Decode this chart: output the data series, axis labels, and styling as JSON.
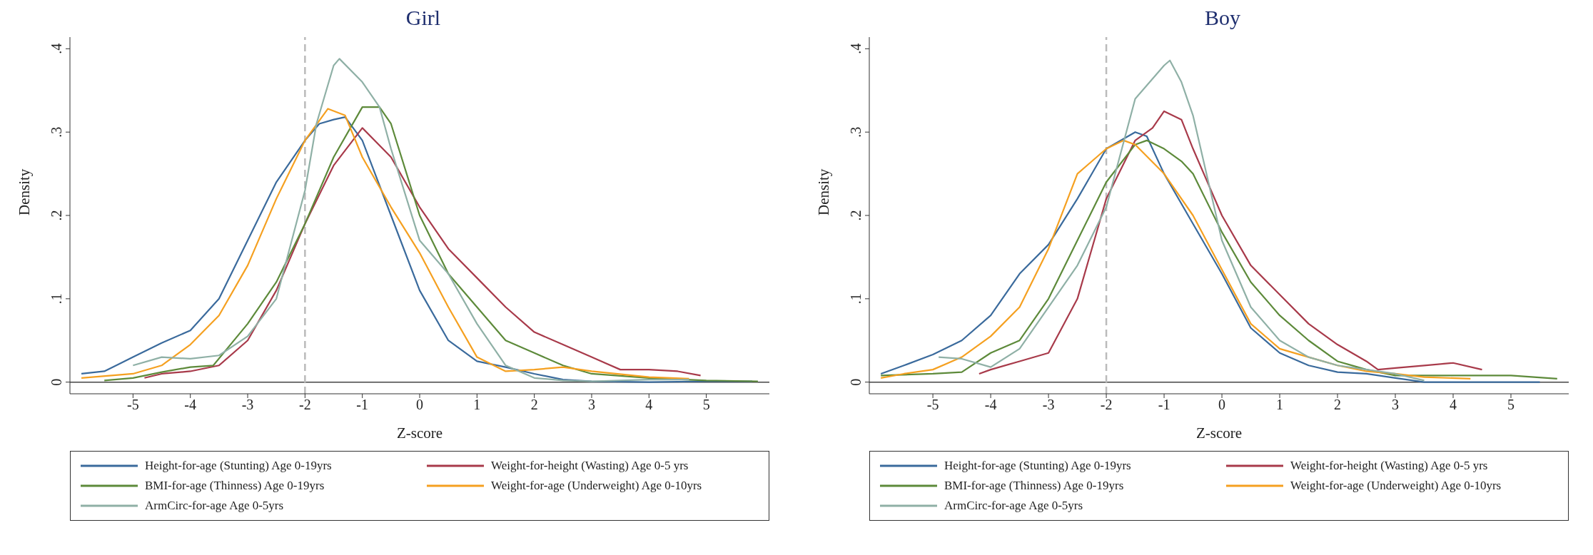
{
  "chart_data": [
    {
      "type": "line",
      "title": "Girl",
      "xlabel": "Z-score",
      "ylabel": "Density",
      "xlim": [
        -6.1,
        6.1
      ],
      "ylim": [
        -0.014,
        0.414
      ],
      "xticks": [
        -5,
        -4,
        -3,
        -2,
        -1,
        0,
        1,
        2,
        3,
        4,
        5
      ],
      "yticks": [
        0,
        {
          "value": 0.1,
          "label": ".1"
        },
        {
          "value": 0.2,
          "label": ".2"
        },
        {
          "value": 0.3,
          "label": ".3"
        },
        {
          "value": 0.4,
          "label": ".4"
        }
      ],
      "grid": false,
      "legend": "bottom",
      "marker": "none",
      "line_style": "solid",
      "ref_lines": [
        {
          "axis": "y",
          "value": 0,
          "label": null,
          "color": "#444444",
          "line_style": "solid"
        },
        {
          "axis": "x",
          "value": -2,
          "label": null,
          "color": "#bbbbbb",
          "line_style": "dashed"
        }
      ],
      "series": [
        {
          "name": "Height-for-age (Stunting) Age 0-19yrs",
          "color": "#3a6a9c",
          "x": [
            -5.9,
            -5.5,
            -5,
            -4.5,
            -4,
            -3.5,
            -3,
            -2.5,
            -2,
            -1.75,
            -1.5,
            -1.3,
            -1,
            -0.5,
            0,
            0.5,
            1,
            1.5,
            2,
            2.5,
            3,
            4,
            5,
            5.8
          ],
          "values": [
            0.01,
            0.013,
            0.03,
            0.047,
            0.062,
            0.1,
            0.17,
            0.24,
            0.29,
            0.31,
            0.315,
            0.318,
            0.29,
            0.2,
            0.11,
            0.05,
            0.025,
            0.018,
            0.01,
            0.003,
            0.001,
            0,
            0.001,
            0.001
          ]
        },
        {
          "name": "Weight-for-height (Wasting) Age 0-5 yrs",
          "color": "#a83a4a",
          "x": [
            -4.8,
            -4.5,
            -4,
            -3.5,
            -3,
            -2.5,
            -2,
            -1.5,
            -1,
            -0.5,
            0,
            0.5,
            1,
            1.5,
            2,
            2.5,
            3,
            3.5,
            4,
            4.5,
            4.9
          ],
          "values": [
            0.005,
            0.01,
            0.013,
            0.02,
            0.05,
            0.11,
            0.19,
            0.26,
            0.305,
            0.27,
            0.21,
            0.16,
            0.125,
            0.09,
            0.06,
            0.045,
            0.03,
            0.015,
            0.015,
            0.013,
            0.008
          ]
        },
        {
          "name": "BMI-for-age (Thinness) Age 0-19yrs",
          "color": "#5d8a3a",
          "x": [
            -5.5,
            -5,
            -4.5,
            -4,
            -3.6,
            -3,
            -2.5,
            -2,
            -1.5,
            -1,
            -0.7,
            -0.5,
            0,
            0.5,
            1,
            1.5,
            2,
            2.5,
            3,
            4,
            5,
            5.9
          ],
          "values": [
            0.002,
            0.005,
            0.012,
            0.018,
            0.02,
            0.07,
            0.12,
            0.19,
            0.27,
            0.33,
            0.33,
            0.31,
            0.2,
            0.13,
            0.09,
            0.05,
            0.035,
            0.02,
            0.01,
            0.005,
            0.002,
            0.001
          ]
        },
        {
          "name": "Weight-for-age (Underweight) Age 0-10yrs",
          "color": "#f5a020",
          "x": [
            -5.9,
            -5,
            -4.5,
            -4,
            -3.5,
            -3,
            -2.5,
            -2,
            -1.6,
            -1.3,
            -1,
            -0.5,
            0,
            0.5,
            1,
            1.5,
            2,
            2.5,
            3,
            4,
            4.7
          ],
          "values": [
            0.005,
            0.01,
            0.02,
            0.045,
            0.08,
            0.14,
            0.22,
            0.29,
            0.328,
            0.32,
            0.27,
            0.21,
            0.155,
            0.09,
            0.03,
            0.013,
            0.015,
            0.018,
            0.013,
            0.006,
            0.004
          ]
        },
        {
          "name": "ArmCirc-for-age Age 0-5yrs",
          "color": "#8fb0a6",
          "x": [
            -5,
            -4.5,
            -4,
            -3.5,
            -3,
            -2.5,
            -2,
            -1.8,
            -1.5,
            -1.4,
            -1,
            -0.7,
            -0.5,
            0,
            0.5,
            1,
            1.5,
            2,
            2.5,
            3,
            4,
            4.7
          ],
          "values": [
            0.02,
            0.03,
            0.028,
            0.032,
            0.055,
            0.1,
            0.23,
            0.31,
            0.38,
            0.388,
            0.36,
            0.33,
            0.28,
            0.17,
            0.13,
            0.07,
            0.02,
            0.005,
            0.002,
            0.001,
            0.003,
            0.003
          ]
        }
      ]
    },
    {
      "type": "line",
      "title": "Boy",
      "xlabel": "Z-score",
      "ylabel": "Density",
      "xlim": [
        -6.1,
        6.0
      ],
      "ylim": [
        -0.014,
        0.414
      ],
      "xticks": [
        -5,
        -4,
        -3,
        -2,
        -1,
        0,
        1,
        2,
        3,
        4,
        5
      ],
      "yticks": [
        0,
        {
          "value": 0.1,
          "label": ".1"
        },
        {
          "value": 0.2,
          "label": ".2"
        },
        {
          "value": 0.3,
          "label": ".3"
        },
        {
          "value": 0.4,
          "label": ".4"
        }
      ],
      "grid": false,
      "legend": "bottom",
      "marker": "none",
      "line_style": "solid",
      "ref_lines": [
        {
          "axis": "y",
          "value": 0,
          "label": null,
          "color": "#444444",
          "line_style": "solid"
        },
        {
          "axis": "x",
          "value": -2,
          "label": null,
          "color": "#bbbbbb",
          "line_style": "dashed"
        }
      ],
      "series": [
        {
          "name": "Height-for-age (Stunting) Age 0-19yrs",
          "color": "#3a6a9c",
          "x": [
            -5.9,
            -5.5,
            -5,
            -4.5,
            -4,
            -3.5,
            -3,
            -2.5,
            -2,
            -1.5,
            -1.3,
            -1,
            -0.5,
            0,
            0.5,
            1,
            1.5,
            2,
            2.5,
            3,
            3.5,
            5.5
          ],
          "values": [
            0.01,
            0.02,
            0.033,
            0.05,
            0.08,
            0.13,
            0.165,
            0.22,
            0.28,
            0.3,
            0.295,
            0.25,
            0.19,
            0.13,
            0.065,
            0.035,
            0.02,
            0.012,
            0.01,
            0.005,
            0,
            0
          ]
        },
        {
          "name": "Weight-for-height (Wasting) Age 0-5 yrs",
          "color": "#a83a4a",
          "x": [
            -4.2,
            -4,
            -3.5,
            -3,
            -2.5,
            -2,
            -1.5,
            -1.2,
            -1,
            -0.7,
            -0.5,
            0,
            0.5,
            1,
            1.5,
            2,
            2.5,
            2.7,
            3,
            3.5,
            4,
            4.5
          ],
          "values": [
            0.01,
            0.015,
            0.025,
            0.035,
            0.1,
            0.22,
            0.29,
            0.305,
            0.325,
            0.315,
            0.28,
            0.2,
            0.14,
            0.105,
            0.07,
            0.045,
            0.025,
            0.015,
            0.017,
            0.02,
            0.023,
            0.015
          ]
        },
        {
          "name": "BMI-for-age (Thinness) Age 0-19yrs",
          "color": "#5d8a3a",
          "x": [
            -5.9,
            -5,
            -4.5,
            -4,
            -3.5,
            -3,
            -2.5,
            -2,
            -1.5,
            -1.3,
            -1,
            -0.7,
            -0.5,
            0,
            0.5,
            1,
            1.5,
            2,
            2.5,
            3,
            4,
            5,
            5.8
          ],
          "values": [
            0.008,
            0.01,
            0.012,
            0.035,
            0.05,
            0.1,
            0.17,
            0.24,
            0.285,
            0.29,
            0.28,
            0.265,
            0.25,
            0.18,
            0.12,
            0.08,
            0.05,
            0.025,
            0.015,
            0.008,
            0.008,
            0.008,
            0.004
          ]
        },
        {
          "name": "Weight-for-age (Underweight) Age 0-10yrs",
          "color": "#f5a020",
          "x": [
            -5.9,
            -5.5,
            -5,
            -4.5,
            -4,
            -3.5,
            -3,
            -2.5,
            -2,
            -1.7,
            -1.5,
            -1,
            -0.5,
            0,
            0.5,
            1,
            1.5,
            2,
            2.5,
            3,
            3.5,
            4.3
          ],
          "values": [
            0.005,
            0.01,
            0.015,
            0.03,
            0.055,
            0.09,
            0.16,
            0.25,
            0.28,
            0.29,
            0.285,
            0.25,
            0.2,
            0.135,
            0.07,
            0.04,
            0.03,
            0.02,
            0.013,
            0.01,
            0.006,
            0.004
          ]
        },
        {
          "name": "ArmCirc-for-age Age 0-5yrs",
          "color": "#8fb0a6",
          "x": [
            -4.9,
            -4.5,
            -4,
            -3.5,
            -3,
            -2.5,
            -2,
            -1.5,
            -1,
            -0.9,
            -0.7,
            -0.5,
            0,
            0.5,
            1,
            1.5,
            2,
            2.5,
            3,
            3.5
          ],
          "values": [
            0.03,
            0.028,
            0.018,
            0.04,
            0.09,
            0.14,
            0.21,
            0.34,
            0.38,
            0.386,
            0.36,
            0.32,
            0.17,
            0.09,
            0.05,
            0.03,
            0.02,
            0.015,
            0.01,
            0.002
          ]
        }
      ]
    }
  ]
}
